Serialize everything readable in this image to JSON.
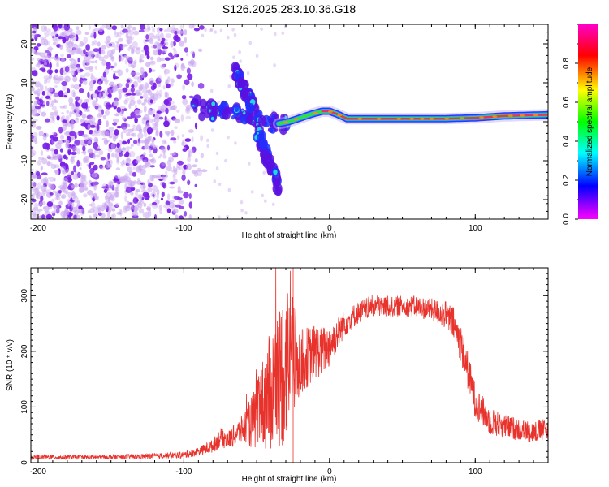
{
  "title": "S126.2025.283.10.36.G18",
  "colors": {
    "line": "#e8322c",
    "signal_core": "#e8325a",
    "signal_edge": "#2aa0ff",
    "noise": "#7a1fe8",
    "noise_faint": "#c9a6ef"
  },
  "chart_data": [
    {
      "type": "heatmap",
      "name": "spectrogram",
      "xlabel": "Height of straight line (km)",
      "ylabel": "Frequency (Hz)",
      "xlim": [
        -205,
        150
      ],
      "ylim": [
        -25,
        25
      ],
      "xticks": [
        -200,
        -100,
        0,
        100
      ],
      "yticks": [
        20,
        10,
        0,
        -10,
        -20
      ],
      "colorbar": {
        "label": "Normalized spectral amplitude",
        "range": [
          0,
          1
        ],
        "ticks": [
          "0.0",
          "0.2",
          "0.4",
          "0.6",
          "0.8"
        ],
        "tick_values": [
          0.0,
          0.2,
          0.4,
          0.6,
          0.8
        ],
        "stops": [
          "#ff00c8",
          "#ff0000",
          "#ffff00",
          "#00ff00",
          "#00ffff",
          "#0000ff",
          "#ff00ff"
        ]
      },
      "noise_region_x": [
        -205,
        -95
      ],
      "signal_track": [
        {
          "x": -95,
          "f": 4
        },
        {
          "x": -85,
          "f": 3
        },
        {
          "x": -75,
          "f": 2.5
        },
        {
          "x": -65,
          "f": 3
        },
        {
          "x": -55,
          "f": 1.5
        },
        {
          "x": -45,
          "f": 0
        },
        {
          "x": -35,
          "f": -0.5
        },
        {
          "x": -28,
          "f": 0
        },
        {
          "x": -20,
          "f": 1
        },
        {
          "x": -12,
          "f": 2
        },
        {
          "x": -5,
          "f": 2.7
        },
        {
          "x": 0,
          "f": 2.7
        },
        {
          "x": 5,
          "f": 2
        },
        {
          "x": 12,
          "f": 0.8
        },
        {
          "x": 40,
          "f": 0.8
        },
        {
          "x": 80,
          "f": 0.8
        },
        {
          "x": 100,
          "f": 1
        },
        {
          "x": 120,
          "f": 1.5
        },
        {
          "x": 150,
          "f": 1.8
        }
      ],
      "branch_up": [
        {
          "x": -65,
          "f": 13
        },
        {
          "x": -55,
          "f": 6
        },
        {
          "x": -50,
          "f": 2
        }
      ],
      "branch_down": [
        {
          "x": -50,
          "f": -2
        },
        {
          "x": -42,
          "f": -10
        },
        {
          "x": -35,
          "f": -16
        }
      ]
    },
    {
      "type": "line",
      "name": "snr",
      "xlabel": "Height of straight line (km)",
      "ylabel": "SNR (10 * v/v)",
      "xlim": [
        -205,
        150
      ],
      "ylim": [
        0,
        350
      ],
      "xticks": [
        -200,
        -100,
        0,
        100
      ],
      "yticks": [
        0,
        100,
        200,
        300
      ],
      "series": [
        {
          "name": "SNR",
          "x": [
            -205,
            -180,
            -150,
            -120,
            -100,
            -90,
            -80,
            -75,
            -70,
            -60,
            -50,
            -45,
            -40,
            -35,
            -30,
            -25,
            -20,
            -15,
            -10,
            -5,
            0,
            5,
            10,
            20,
            30,
            40,
            50,
            60,
            70,
            80,
            85,
            90,
            95,
            100,
            110,
            120,
            130,
            140,
            150
          ],
          "y": [
            10,
            10,
            10,
            12,
            14,
            20,
            30,
            45,
            40,
            60,
            80,
            110,
            130,
            150,
            180,
            190,
            180,
            190,
            200,
            200,
            210,
            230,
            250,
            270,
            282,
            280,
            282,
            280,
            275,
            265,
            250,
            215,
            165,
            110,
            75,
            65,
            60,
            55,
            60
          ],
          "spread": [
            4,
            4,
            4,
            5,
            6,
            8,
            12,
            18,
            16,
            25,
            60,
            90,
            110,
            130,
            150,
            110,
            60,
            55,
            50,
            45,
            40,
            30,
            25,
            20,
            20,
            20,
            18,
            20,
            20,
            25,
            30,
            35,
            35,
            30,
            25,
            22,
            20,
            20,
            20
          ]
        }
      ]
    }
  ]
}
